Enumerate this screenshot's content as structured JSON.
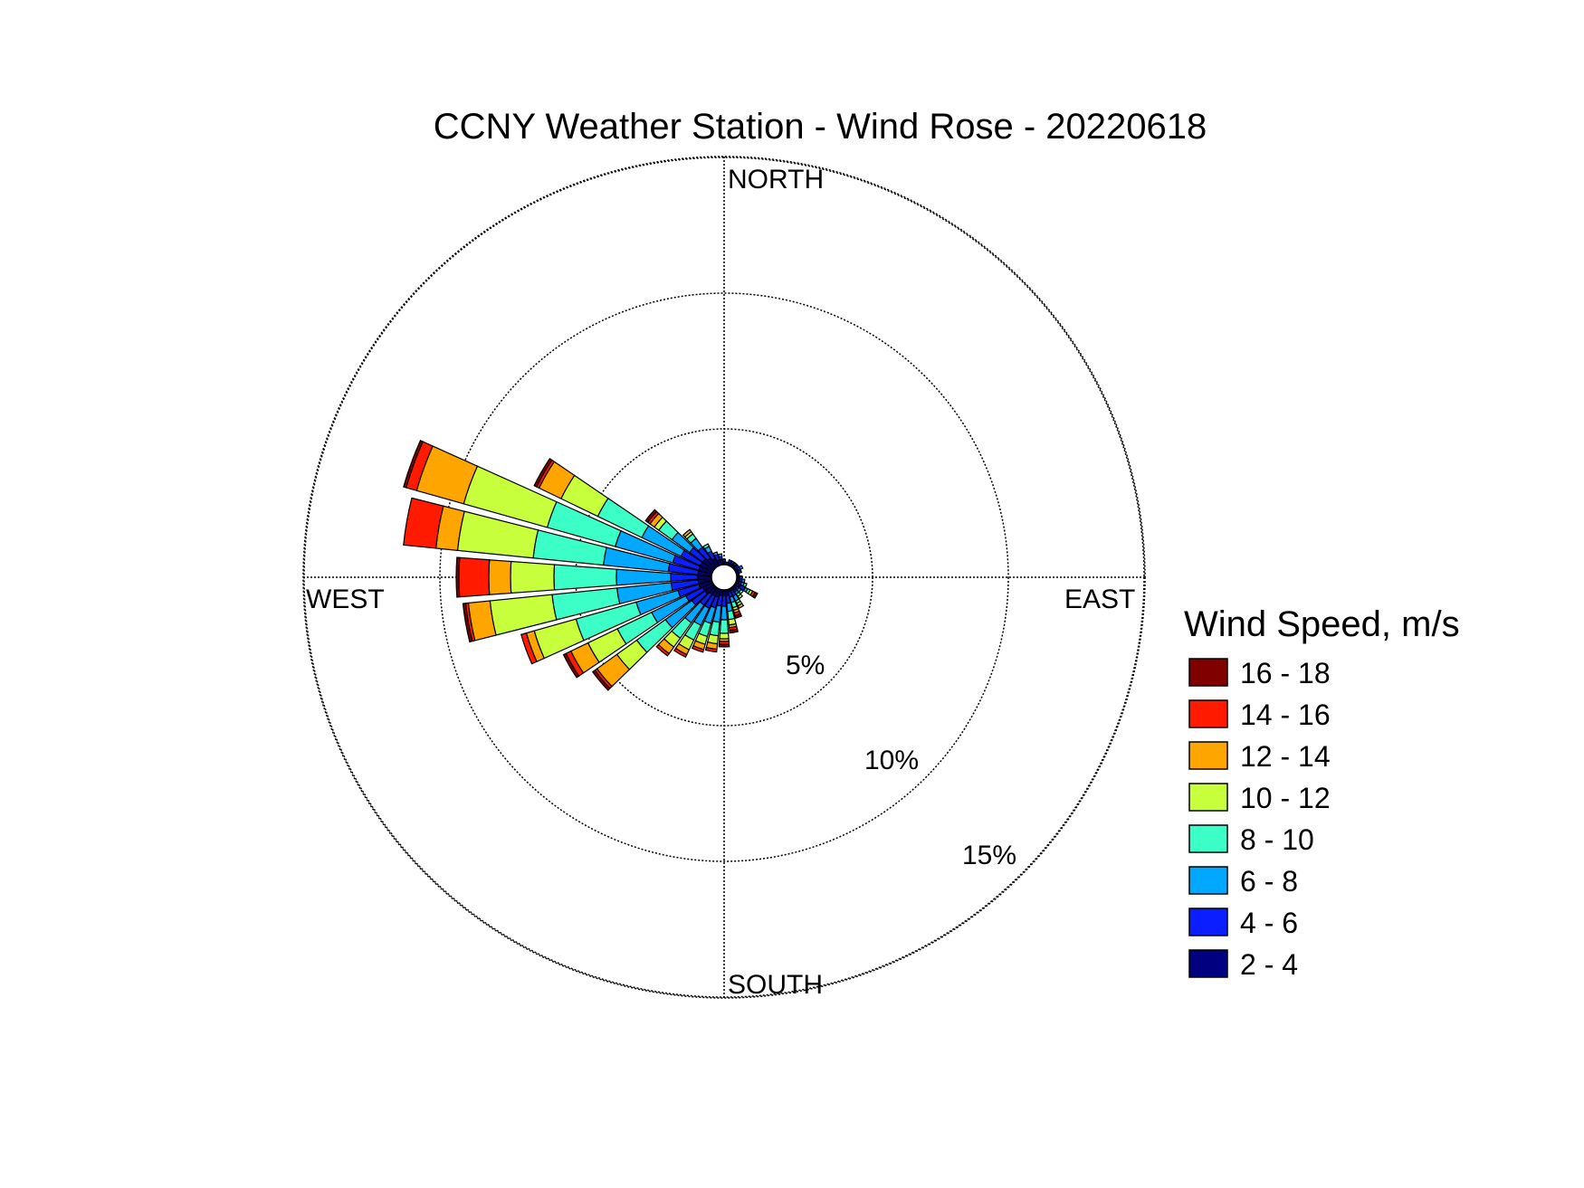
{
  "chart_data": {
    "type": "wind-rose",
    "title": "CCNY Weather Station - Wind Rose - 20220618",
    "direction_labels": {
      "north": "NORTH",
      "east": "EAST",
      "south": "SOUTH",
      "west": "WEST"
    },
    "ring_labels": [
      "5%",
      "10%",
      "15%"
    ],
    "rings_percent": [
      5,
      10,
      15
    ],
    "max_percent": 15.5,
    "legend": {
      "title": "Wind Speed, m/s",
      "placement": "right",
      "bins": [
        {
          "label": "16 - 18",
          "color": "#800000"
        },
        {
          "label": "14 - 16",
          "color": "#ff1a00"
        },
        {
          "label": "12 - 14",
          "color": "#ffa500"
        },
        {
          "label": "10 - 12",
          "color": "#c8ff3c"
        },
        {
          "label": "8 - 10",
          "color": "#3cffc8"
        },
        {
          "label": "6 - 8",
          "color": "#00a8ff"
        },
        {
          "label": "4 - 6",
          "color": "#0a1eff"
        },
        {
          "label": "2 - 4",
          "color": "#000080"
        }
      ]
    },
    "bin_order_inner_to_outer": [
      "2 - 4",
      "4 - 6",
      "6 - 8",
      "8 - 10",
      "10 - 12",
      "12 - 14",
      "14 - 16",
      "16 - 18"
    ],
    "sector_width_deg": 8.5,
    "sectors": [
      {
        "direction_deg": 180,
        "counts": [
          0.2,
          0.4,
          0.5,
          0.5,
          0.2,
          0.1,
          0.1,
          0.1
        ]
      },
      {
        "direction_deg": 190,
        "counts": [
          0.2,
          0.4,
          0.6,
          0.5,
          0.3,
          0.2,
          0.1,
          0.0
        ]
      },
      {
        "direction_deg": 200,
        "counts": [
          0.3,
          0.4,
          0.6,
          0.5,
          0.3,
          0.2,
          0.1,
          0.0
        ]
      },
      {
        "direction_deg": 210,
        "counts": [
          0.3,
          0.5,
          0.7,
          0.6,
          0.4,
          0.2,
          0.1,
          0.0
        ]
      },
      {
        "direction_deg": 220,
        "counts": [
          0.3,
          0.5,
          0.8,
          0.7,
          0.4,
          0.3,
          0.1,
          0.0
        ]
      },
      {
        "direction_deg": 230,
        "counts": [
          0.4,
          0.6,
          1.2,
          1.3,
          0.9,
          0.9,
          0.1,
          0.1
        ]
      },
      {
        "direction_deg": 240,
        "counts": [
          0.4,
          0.7,
          1.4,
          1.4,
          1.2,
          0.7,
          0.2,
          0.1
        ]
      },
      {
        "direction_deg": 250,
        "counts": [
          0.5,
          0.8,
          1.6,
          2.3,
          1.6,
          0.3,
          0.2,
          0.0
        ]
      },
      {
        "direction_deg": 260,
        "counts": [
          0.5,
          1.0,
          2.0,
          2.4,
          2.3,
          0.8,
          0.1,
          0.1
        ]
      },
      {
        "direction_deg": 270,
        "counts": [
          0.5,
          1.0,
          2.0,
          2.3,
          1.6,
          0.8,
          1.1,
          0.1
        ]
      },
      {
        "direction_deg": 280,
        "counts": [
          0.5,
          1.1,
          2.4,
          2.6,
          2.8,
          0.8,
          1.2,
          0.0
        ]
      },
      {
        "direction_deg": 290,
        "counts": [
          0.5,
          1.0,
          2.2,
          2.6,
          3.2,
          1.8,
          0.4,
          0.1
        ]
      },
      {
        "direction_deg": 300,
        "counts": [
          0.5,
          0.8,
          1.6,
          1.8,
          1.5,
          0.9,
          0.1,
          0.1
        ]
      },
      {
        "direction_deg": 310,
        "counts": [
          0.5,
          0.6,
          0.8,
          0.6,
          0.2,
          0.2,
          0.1,
          0.1
        ]
      },
      {
        "direction_deg": 320,
        "counts": [
          0.4,
          0.5,
          0.4,
          0.2,
          0.1,
          0.1,
          0.0,
          0.0
        ]
      },
      {
        "direction_deg": 330,
        "counts": [
          0.3,
          0.3,
          0.2,
          0.1,
          0.0,
          0.0,
          0.0,
          0.0
        ]
      },
      {
        "direction_deg": 340,
        "counts": [
          0.2,
          0.2,
          0.1,
          0.0,
          0.0,
          0.0,
          0.0,
          0.0
        ]
      },
      {
        "direction_deg": 350,
        "counts": [
          0.2,
          0.1,
          0.1,
          0.0,
          0.0,
          0.0,
          0.0,
          0.0
        ]
      },
      {
        "direction_deg": 0,
        "counts": [
          0.1,
          0.1,
          0.0,
          0.0,
          0.0,
          0.0,
          0.0,
          0.0
        ]
      },
      {
        "direction_deg": 10,
        "counts": [
          0.1,
          0.0,
          0.0,
          0.0,
          0.0,
          0.0,
          0.0,
          0.0
        ]
      },
      {
        "direction_deg": 20,
        "counts": [
          0.1,
          0.1,
          0.0,
          0.0,
          0.0,
          0.0,
          0.0,
          0.0
        ]
      },
      {
        "direction_deg": 30,
        "counts": [
          0.1,
          0.1,
          0.0,
          0.0,
          0.0,
          0.0,
          0.0,
          0.0
        ]
      },
      {
        "direction_deg": 40,
        "counts": [
          0.1,
          0.1,
          0.0,
          0.0,
          0.0,
          0.0,
          0.0,
          0.0
        ]
      },
      {
        "direction_deg": 50,
        "counts": [
          0.1,
          0.1,
          0.0,
          0.0,
          0.0,
          0.0,
          0.0,
          0.0
        ]
      },
      {
        "direction_deg": 60,
        "counts": [
          0.1,
          0.1,
          0.1,
          0.0,
          0.0,
          0.0,
          0.0,
          0.0
        ]
      },
      {
        "direction_deg": 70,
        "counts": [
          0.1,
          0.1,
          0.0,
          0.0,
          0.0,
          0.0,
          0.0,
          0.0
        ]
      },
      {
        "direction_deg": 80,
        "counts": [
          0.1,
          0.0,
          0.0,
          0.0,
          0.0,
          0.0,
          0.0,
          0.0
        ]
      },
      {
        "direction_deg": 90,
        "counts": [
          0.1,
          0.1,
          0.0,
          0.0,
          0.0,
          0.0,
          0.0,
          0.0
        ]
      },
      {
        "direction_deg": 100,
        "counts": [
          0.1,
          0.1,
          0.1,
          0.0,
          0.0,
          0.0,
          0.0,
          0.0
        ]
      },
      {
        "direction_deg": 110,
        "counts": [
          0.1,
          0.1,
          0.1,
          0.1,
          0.0,
          0.0,
          0.0,
          0.0
        ]
      },
      {
        "direction_deg": 120,
        "counts": [
          0.2,
          0.2,
          0.1,
          0.1,
          0.1,
          0.0,
          0.1,
          0.1
        ]
      },
      {
        "direction_deg": 130,
        "counts": [
          0.1,
          0.1,
          0.1,
          0.1,
          0.0,
          0.0,
          0.0,
          0.0
        ]
      },
      {
        "direction_deg": 140,
        "counts": [
          0.1,
          0.1,
          0.1,
          0.1,
          0.1,
          0.0,
          0.0,
          0.0
        ]
      },
      {
        "direction_deg": 150,
        "counts": [
          0.1,
          0.2,
          0.2,
          0.1,
          0.1,
          0.1,
          0.0,
          0.0
        ]
      },
      {
        "direction_deg": 160,
        "counts": [
          0.1,
          0.2,
          0.2,
          0.2,
          0.1,
          0.1,
          0.1,
          0.1
        ]
      },
      {
        "direction_deg": 170,
        "counts": [
          0.2,
          0.3,
          0.3,
          0.3,
          0.2,
          0.1,
          0.1,
          0.1
        ]
      }
    ]
  }
}
